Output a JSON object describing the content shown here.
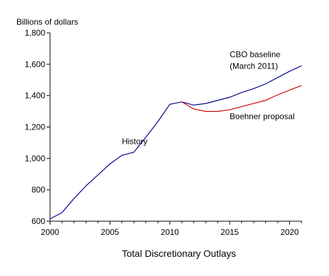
{
  "chart_data": {
    "type": "line",
    "title": "",
    "xlabel": "Total Discretionary Outlays",
    "ylabel": "Billions of dollars",
    "xlim": [
      2000,
      2021
    ],
    "ylim": [
      600,
      1800
    ],
    "x_ticks": [
      2000,
      2005,
      2010,
      2015,
      2020
    ],
    "y_ticks": [
      600,
      800,
      1000,
      1200,
      1400,
      1600,
      1800
    ],
    "y_tick_labels": [
      "600",
      "800",
      "1,000",
      "1,200",
      "1,400",
      "1,600",
      "1,800"
    ],
    "grid": false,
    "legend": "none",
    "series": [
      {
        "name": "History",
        "color": "#00008b",
        "x": [
          2000,
          2001,
          2002,
          2003,
          2004,
          2005,
          2006,
          2007,
          2008,
          2009,
          2010,
          2011
        ],
        "values": [
          615,
          655,
          745,
          825,
          895,
          965,
          1020,
          1040,
          1135,
          1235,
          1345,
          1360
        ]
      },
      {
        "name": "CBO baseline (March 2011)",
        "color": "#00008b",
        "x": [
          2011,
          2012,
          2013,
          2014,
          2015,
          2016,
          2017,
          2018,
          2019,
          2020,
          2021
        ],
        "values": [
          1360,
          1340,
          1350,
          1370,
          1390,
          1420,
          1445,
          1475,
          1515,
          1555,
          1590
        ]
      },
      {
        "name": "Boehner proposal",
        "color": "#cc0000",
        "x": [
          2011,
          2012,
          2013,
          2014,
          2015,
          2016,
          2017,
          2018,
          2019,
          2020,
          2021
        ],
        "values": [
          1360,
          1315,
          1300,
          1300,
          1310,
          1330,
          1350,
          1370,
          1405,
          1435,
          1465
        ]
      }
    ],
    "annotations": [
      {
        "text": "History",
        "x": 2006,
        "y": 1090
      },
      {
        "text": "CBO baseline",
        "x": 2015,
        "y": 1645
      },
      {
        "text": "(March 2011)",
        "x": 2015,
        "y": 1570
      },
      {
        "text": "Boehner proposal",
        "x": 2015,
        "y": 1250
      }
    ]
  }
}
